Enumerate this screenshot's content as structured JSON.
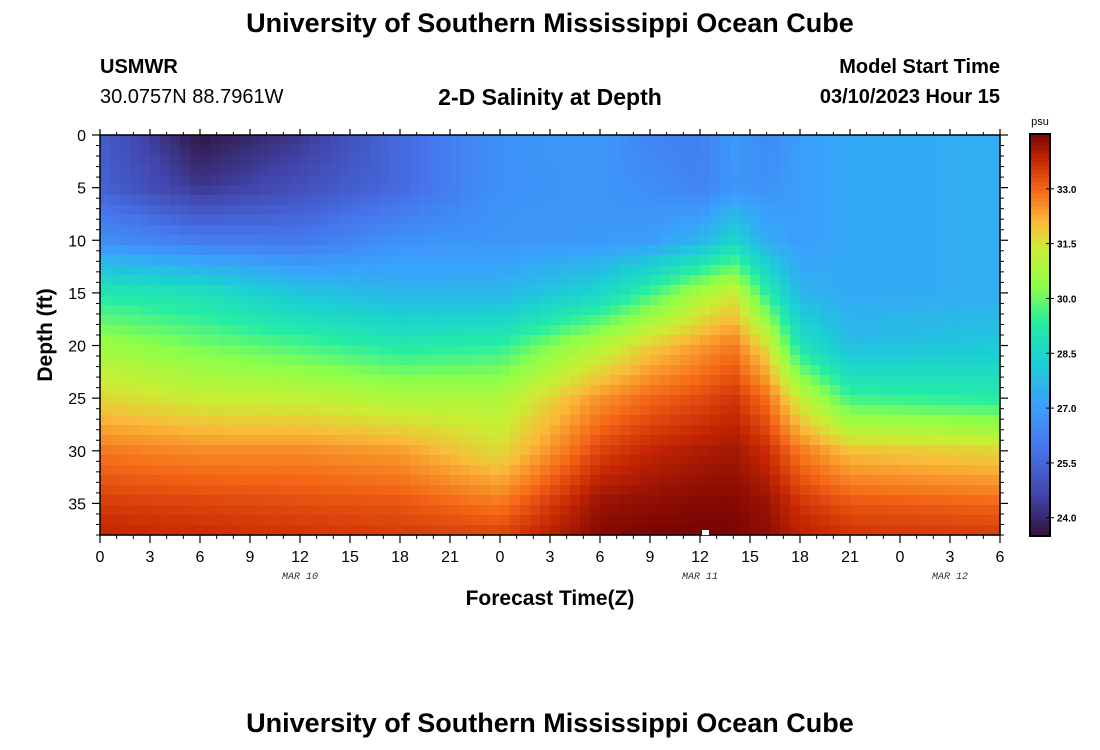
{
  "header": {
    "title": "University of Southern Mississippi Ocean Cube",
    "station_id": "USMWR",
    "coordinates": "30.0757N  88.7961W",
    "plot_title": "2-D Salinity at Depth",
    "model_start_label": "Model Start Time",
    "model_start_value": "03/10/2023 Hour 15"
  },
  "footer": {
    "title": "University of Southern Mississippi Ocean Cube"
  },
  "chart_data": {
    "type": "heatmap",
    "title": "2-D Salinity at Depth",
    "xlabel": "Forecast Time(Z)",
    "ylabel": "Depth (ft)",
    "x_range_hours": [
      0,
      54
    ],
    "x_tick_hours": [
      0,
      3,
      6,
      9,
      12,
      15,
      18,
      21,
      24,
      27,
      30,
      33,
      36,
      39,
      42,
      45,
      48,
      51,
      54
    ],
    "x_tick_labels": [
      "0",
      "3",
      "6",
      "9",
      "12",
      "15",
      "18",
      "21",
      "0",
      "3",
      "6",
      "9",
      "12",
      "15",
      "18",
      "21",
      "0",
      "3",
      "6"
    ],
    "date_labels": [
      {
        "label": "MAR 10",
        "hour": 12
      },
      {
        "label": "MAR 11",
        "hour": 36
      },
      {
        "label": "MAR 12",
        "hour": 51
      }
    ],
    "ylim": [
      0,
      38
    ],
    "y_ticks": [
      0,
      5,
      10,
      15,
      20,
      25,
      30,
      35
    ],
    "colorbar": {
      "unit": "psu",
      "range": [
        23.5,
        34.5
      ],
      "tick_values": [
        24.0,
        25.5,
        27.0,
        28.5,
        30.0,
        31.5,
        33.0
      ],
      "tick_labels": [
        "24.0",
        "25.5",
        "27.0",
        "28.5",
        "30.0",
        "31.5",
        "33.0"
      ]
    },
    "profiles": {
      "description": "Salinity (psu) vs depth (ft) at selected forecast hours; field interpolated between them",
      "depths": [
        0,
        5,
        10,
        15,
        20,
        25,
        30,
        35,
        38
      ],
      "columns": [
        {
          "hour": 0,
          "values": [
            25.3,
            25.4,
            26.6,
            29.2,
            30.6,
            31.7,
            32.8,
            33.5,
            33.8
          ]
        },
        {
          "hour": 6,
          "values": [
            23.6,
            24.3,
            26.1,
            28.9,
            30.1,
            31.3,
            32.6,
            33.4,
            33.7
          ]
        },
        {
          "hour": 12,
          "values": [
            24.3,
            24.9,
            26.0,
            28.0,
            29.7,
            31.2,
            32.6,
            33.3,
            33.6
          ]
        },
        {
          "hour": 18,
          "values": [
            25.6,
            25.6,
            26.7,
            27.6,
            29.2,
            30.9,
            32.4,
            33.2,
            33.5
          ]
        },
        {
          "hour": 24,
          "values": [
            26.7,
            26.7,
            26.8,
            27.6,
            29.4,
            30.9,
            31.6,
            32.8,
            33.4
          ]
        },
        {
          "hour": 30,
          "values": [
            26.9,
            26.8,
            26.9,
            28.5,
            31.0,
            32.5,
            33.4,
            34.2,
            34.4
          ]
        },
        {
          "hour": 33,
          "values": [
            26.3,
            26.6,
            27.0,
            29.6,
            31.8,
            33.0,
            33.8,
            34.3,
            34.5
          ]
        },
        {
          "hour": 36,
          "values": [
            26.2,
            26.3,
            27.6,
            30.8,
            32.4,
            33.3,
            34.0,
            34.4,
            34.5
          ]
        },
        {
          "hour": 38,
          "values": [
            26.9,
            26.8,
            28.5,
            31.4,
            32.8,
            33.6,
            34.1,
            34.4,
            34.5
          ]
        },
        {
          "hour": 40,
          "values": [
            26.5,
            26.7,
            27.4,
            29.4,
            31.6,
            32.9,
            33.7,
            34.2,
            34.3
          ]
        },
        {
          "hour": 42,
          "values": [
            27.0,
            27.0,
            27.0,
            27.6,
            29.0,
            31.3,
            32.8,
            33.6,
            33.9
          ]
        },
        {
          "hour": 45,
          "values": [
            27.3,
            27.3,
            27.3,
            27.3,
            27.8,
            29.6,
            32.0,
            33.2,
            33.6
          ]
        },
        {
          "hour": 54,
          "values": [
            27.4,
            27.4,
            27.4,
            27.4,
            28.1,
            29.3,
            31.7,
            33.0,
            33.5
          ]
        }
      ]
    }
  }
}
